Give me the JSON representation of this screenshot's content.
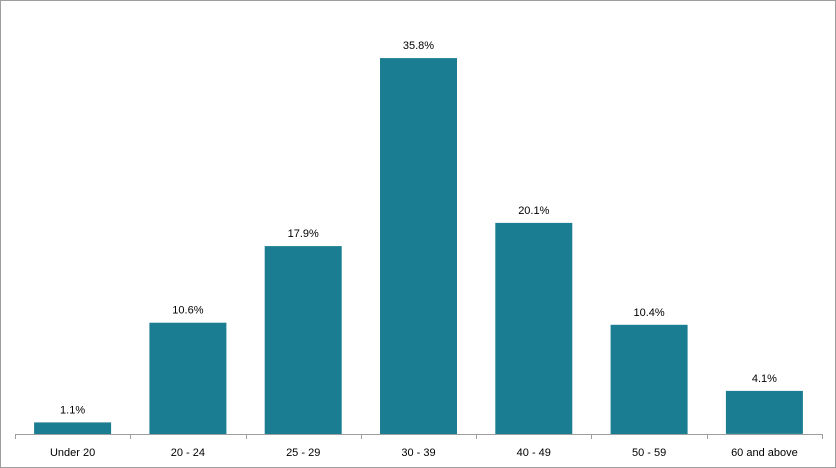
{
  "chart_data": {
    "type": "bar",
    "categories": [
      "Under 20",
      "20 - 24",
      "25 - 29",
      "30 - 39",
      "40 - 49",
      "50 - 59",
      "60 and above"
    ],
    "values": [
      1.1,
      10.6,
      17.9,
      35.8,
      20.1,
      10.4,
      4.1
    ],
    "data_labels": [
      "1.1%",
      "10.6%",
      "17.9%",
      "35.8%",
      "20.1%",
      "10.4%",
      "4.1%"
    ],
    "title": "",
    "xlabel": "",
    "ylabel": "",
    "ylim": [
      0,
      40
    ],
    "grid": false,
    "legend": "none",
    "bar_color": "#1a7d91",
    "axis_color": "#9e9e9e"
  }
}
